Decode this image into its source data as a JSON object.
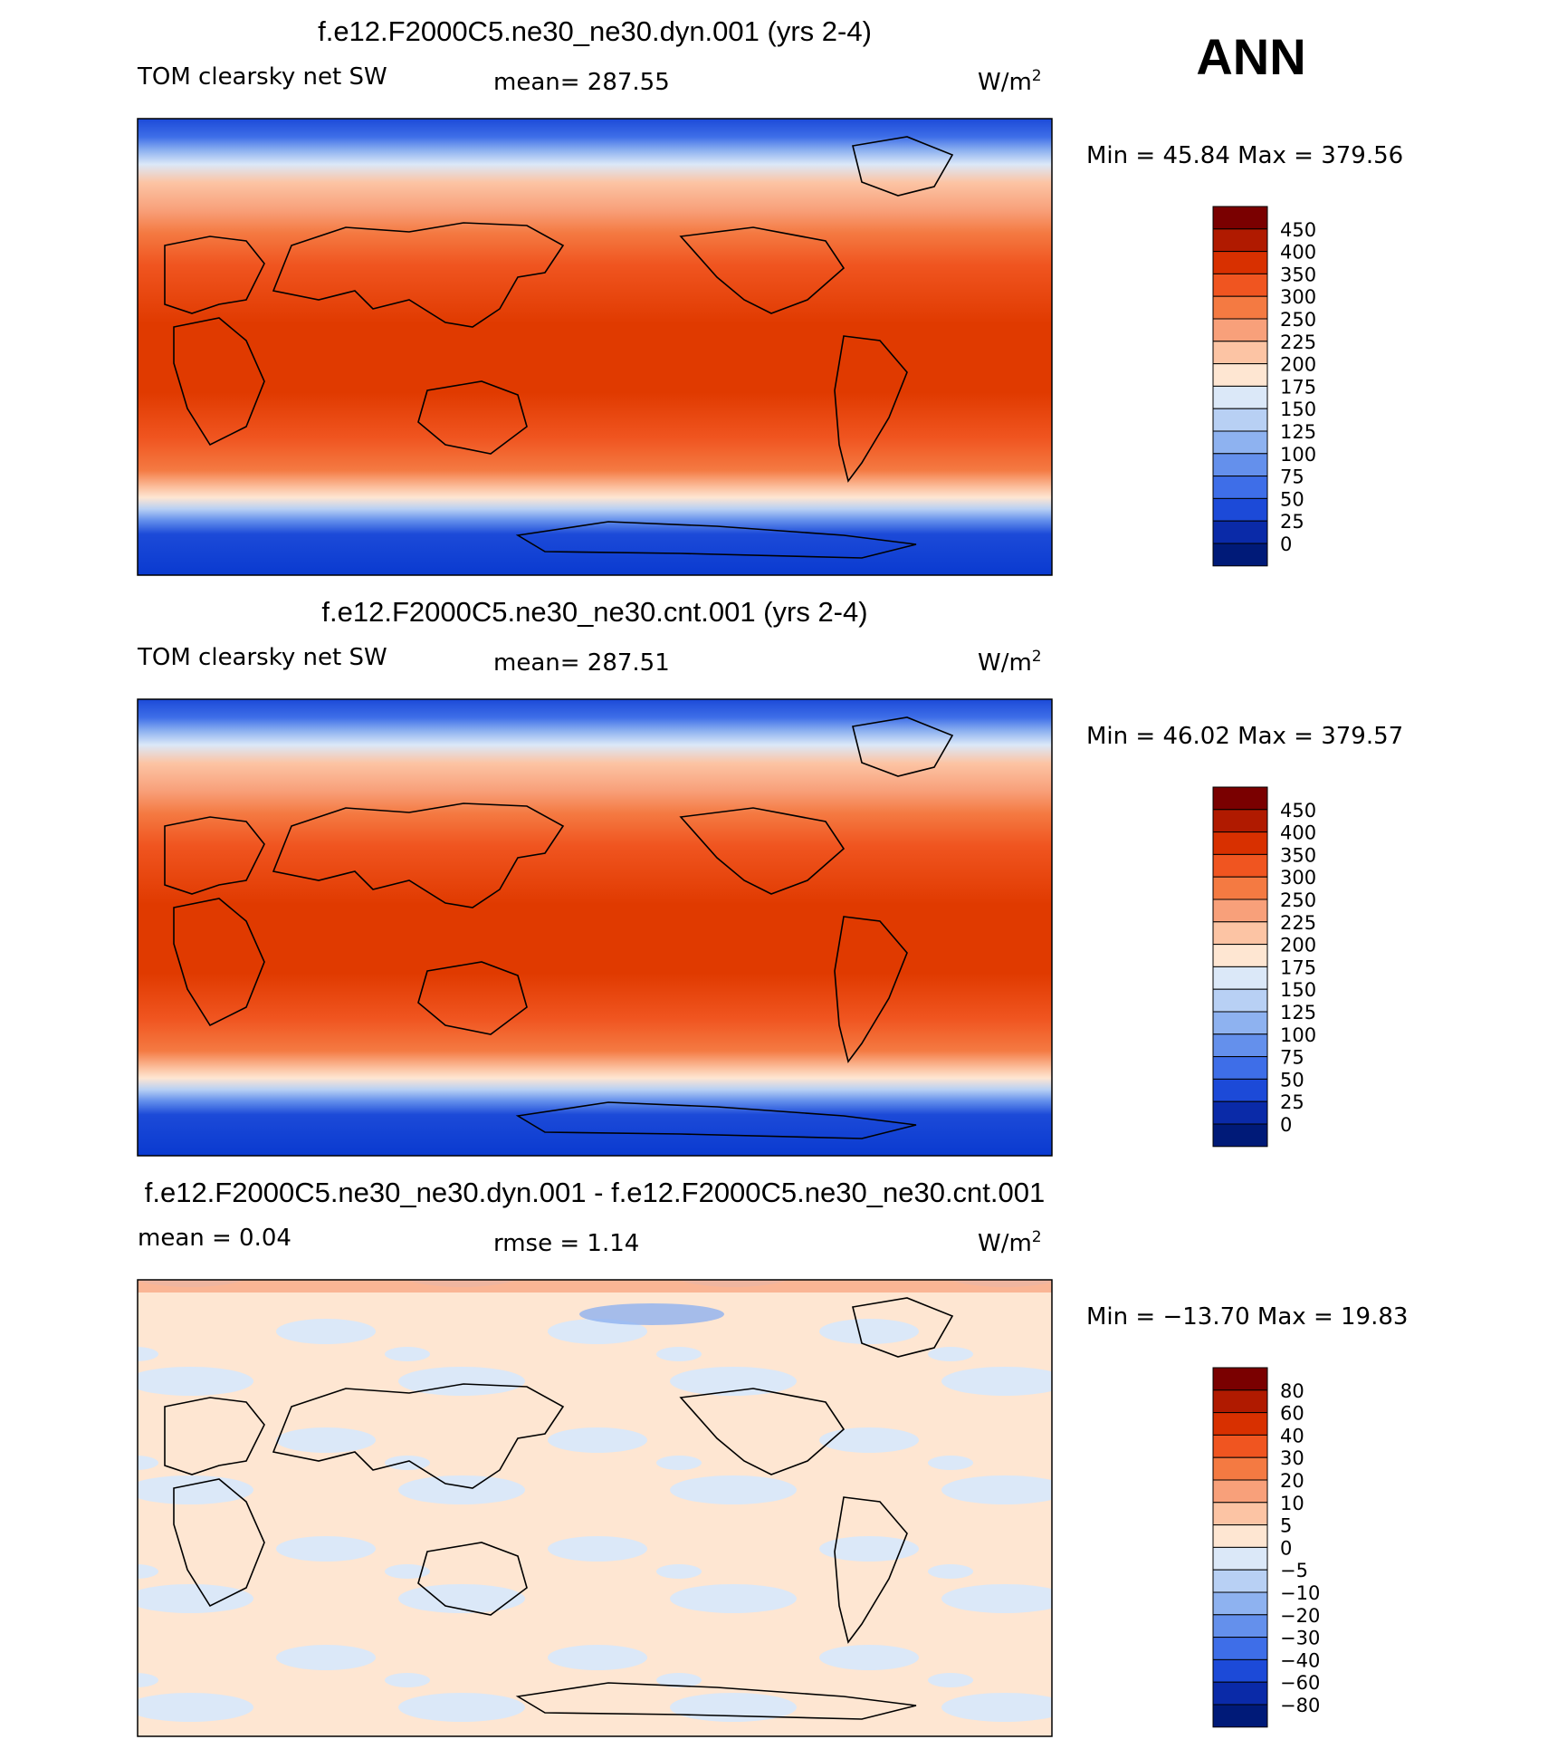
{
  "season": "ANN",
  "units": "W/m",
  "units_sup": "2",
  "panels": [
    {
      "title": "f.e12.F2000C5.ne30_ne30.dyn.001 (yrs 2-4)",
      "left_label": "TOM clearsky net SW",
      "mean_text": "mean= 287.55",
      "minmax_text": "Min =   45.84 Max = 379.56",
      "colorbar": "abs"
    },
    {
      "title": "f.e12.F2000C5.ne30_ne30.cnt.001 (yrs 2-4)",
      "left_label": "TOM clearsky net SW",
      "mean_text": "mean= 287.51",
      "minmax_text": "Min =   46.02 Max = 379.57",
      "colorbar": "abs"
    },
    {
      "title": "f.e12.F2000C5.ne30_ne30.dyn.001 - f.e12.F2000C5.ne30_ne30.cnt.001",
      "left_label": "mean =    0.04",
      "mean_text": "rmse =    1.14",
      "minmax_text": "Min = −13.70 Max =   19.83",
      "colorbar": "diff"
    }
  ],
  "colorbars": {
    "abs": {
      "labels": [
        "450",
        "400",
        "350",
        "300",
        "250",
        "225",
        "200",
        "175",
        "150",
        "125",
        "100",
        "75",
        "50",
        "25",
        "0"
      ],
      "colors": [
        "#7a0000",
        "#b01a00",
        "#d83000",
        "#f05520",
        "#f47a42",
        "#f8a07a",
        "#fcc4a4",
        "#fee6d2",
        "#dbe8f8",
        "#b8d0f4",
        "#8eb2f0",
        "#6490ec",
        "#3e6ee8",
        "#1c4ad8",
        "#0a2aa8",
        "#001a78"
      ]
    },
    "diff": {
      "labels": [
        "80",
        "60",
        "40",
        "30",
        "20",
        "10",
        "5",
        "0",
        "−5",
        "−10",
        "−20",
        "−30",
        "−40",
        "−60",
        "−80"
      ],
      "colors": [
        "#7a0000",
        "#b01a00",
        "#d83000",
        "#f05520",
        "#f47a42",
        "#f8a07a",
        "#fcc4a4",
        "#fee6d2",
        "#dbe8f8",
        "#b8d0f4",
        "#8eb2f0",
        "#6490ec",
        "#3e6ee8",
        "#1c4ad8",
        "#0a2aa8",
        "#001a78"
      ]
    }
  },
  "chart_data": [
    {
      "type": "heatmap",
      "title": "f.e12.F2000C5.ne30_ne30.dyn.001 (yrs 2-4)",
      "variable": "TOM clearsky net SW",
      "units": "W/m2",
      "mean": 287.55,
      "min": 45.84,
      "max": 379.56,
      "levels": [
        0,
        25,
        50,
        75,
        100,
        125,
        150,
        175,
        200,
        225,
        250,
        300,
        350,
        400,
        450
      ],
      "latitude_profile": {
        "lat": [
          90,
          75,
          60,
          45,
          30,
          15,
          0,
          -15,
          -30,
          -45,
          -60,
          -75,
          -90
        ],
        "value": [
          60,
          150,
          200,
          250,
          300,
          350,
          360,
          350,
          300,
          250,
          180,
          60,
          50
        ]
      }
    },
    {
      "type": "heatmap",
      "title": "f.e12.F2000C5.ne30_ne30.cnt.001 (yrs 2-4)",
      "variable": "TOM clearsky net SW",
      "units": "W/m2",
      "mean": 287.51,
      "min": 46.02,
      "max": 379.57,
      "levels": [
        0,
        25,
        50,
        75,
        100,
        125,
        150,
        175,
        200,
        225,
        250,
        300,
        350,
        400,
        450
      ],
      "latitude_profile": {
        "lat": [
          90,
          75,
          60,
          45,
          30,
          15,
          0,
          -15,
          -30,
          -45,
          -60,
          -75,
          -90
        ],
        "value": [
          60,
          150,
          200,
          250,
          300,
          350,
          360,
          350,
          300,
          250,
          180,
          60,
          50
        ]
      }
    },
    {
      "type": "heatmap",
      "title": "f.e12.F2000C5.ne30_ne30.dyn.001 - f.e12.F2000C5.ne30_ne30.cnt.001",
      "units": "W/m2",
      "mean": 0.04,
      "rmse": 1.14,
      "min": -13.7,
      "max": 19.83,
      "levels": [
        -80,
        -60,
        -40,
        -30,
        -20,
        -10,
        -5,
        0,
        5,
        10,
        20,
        30,
        40,
        60,
        80
      ]
    }
  ]
}
